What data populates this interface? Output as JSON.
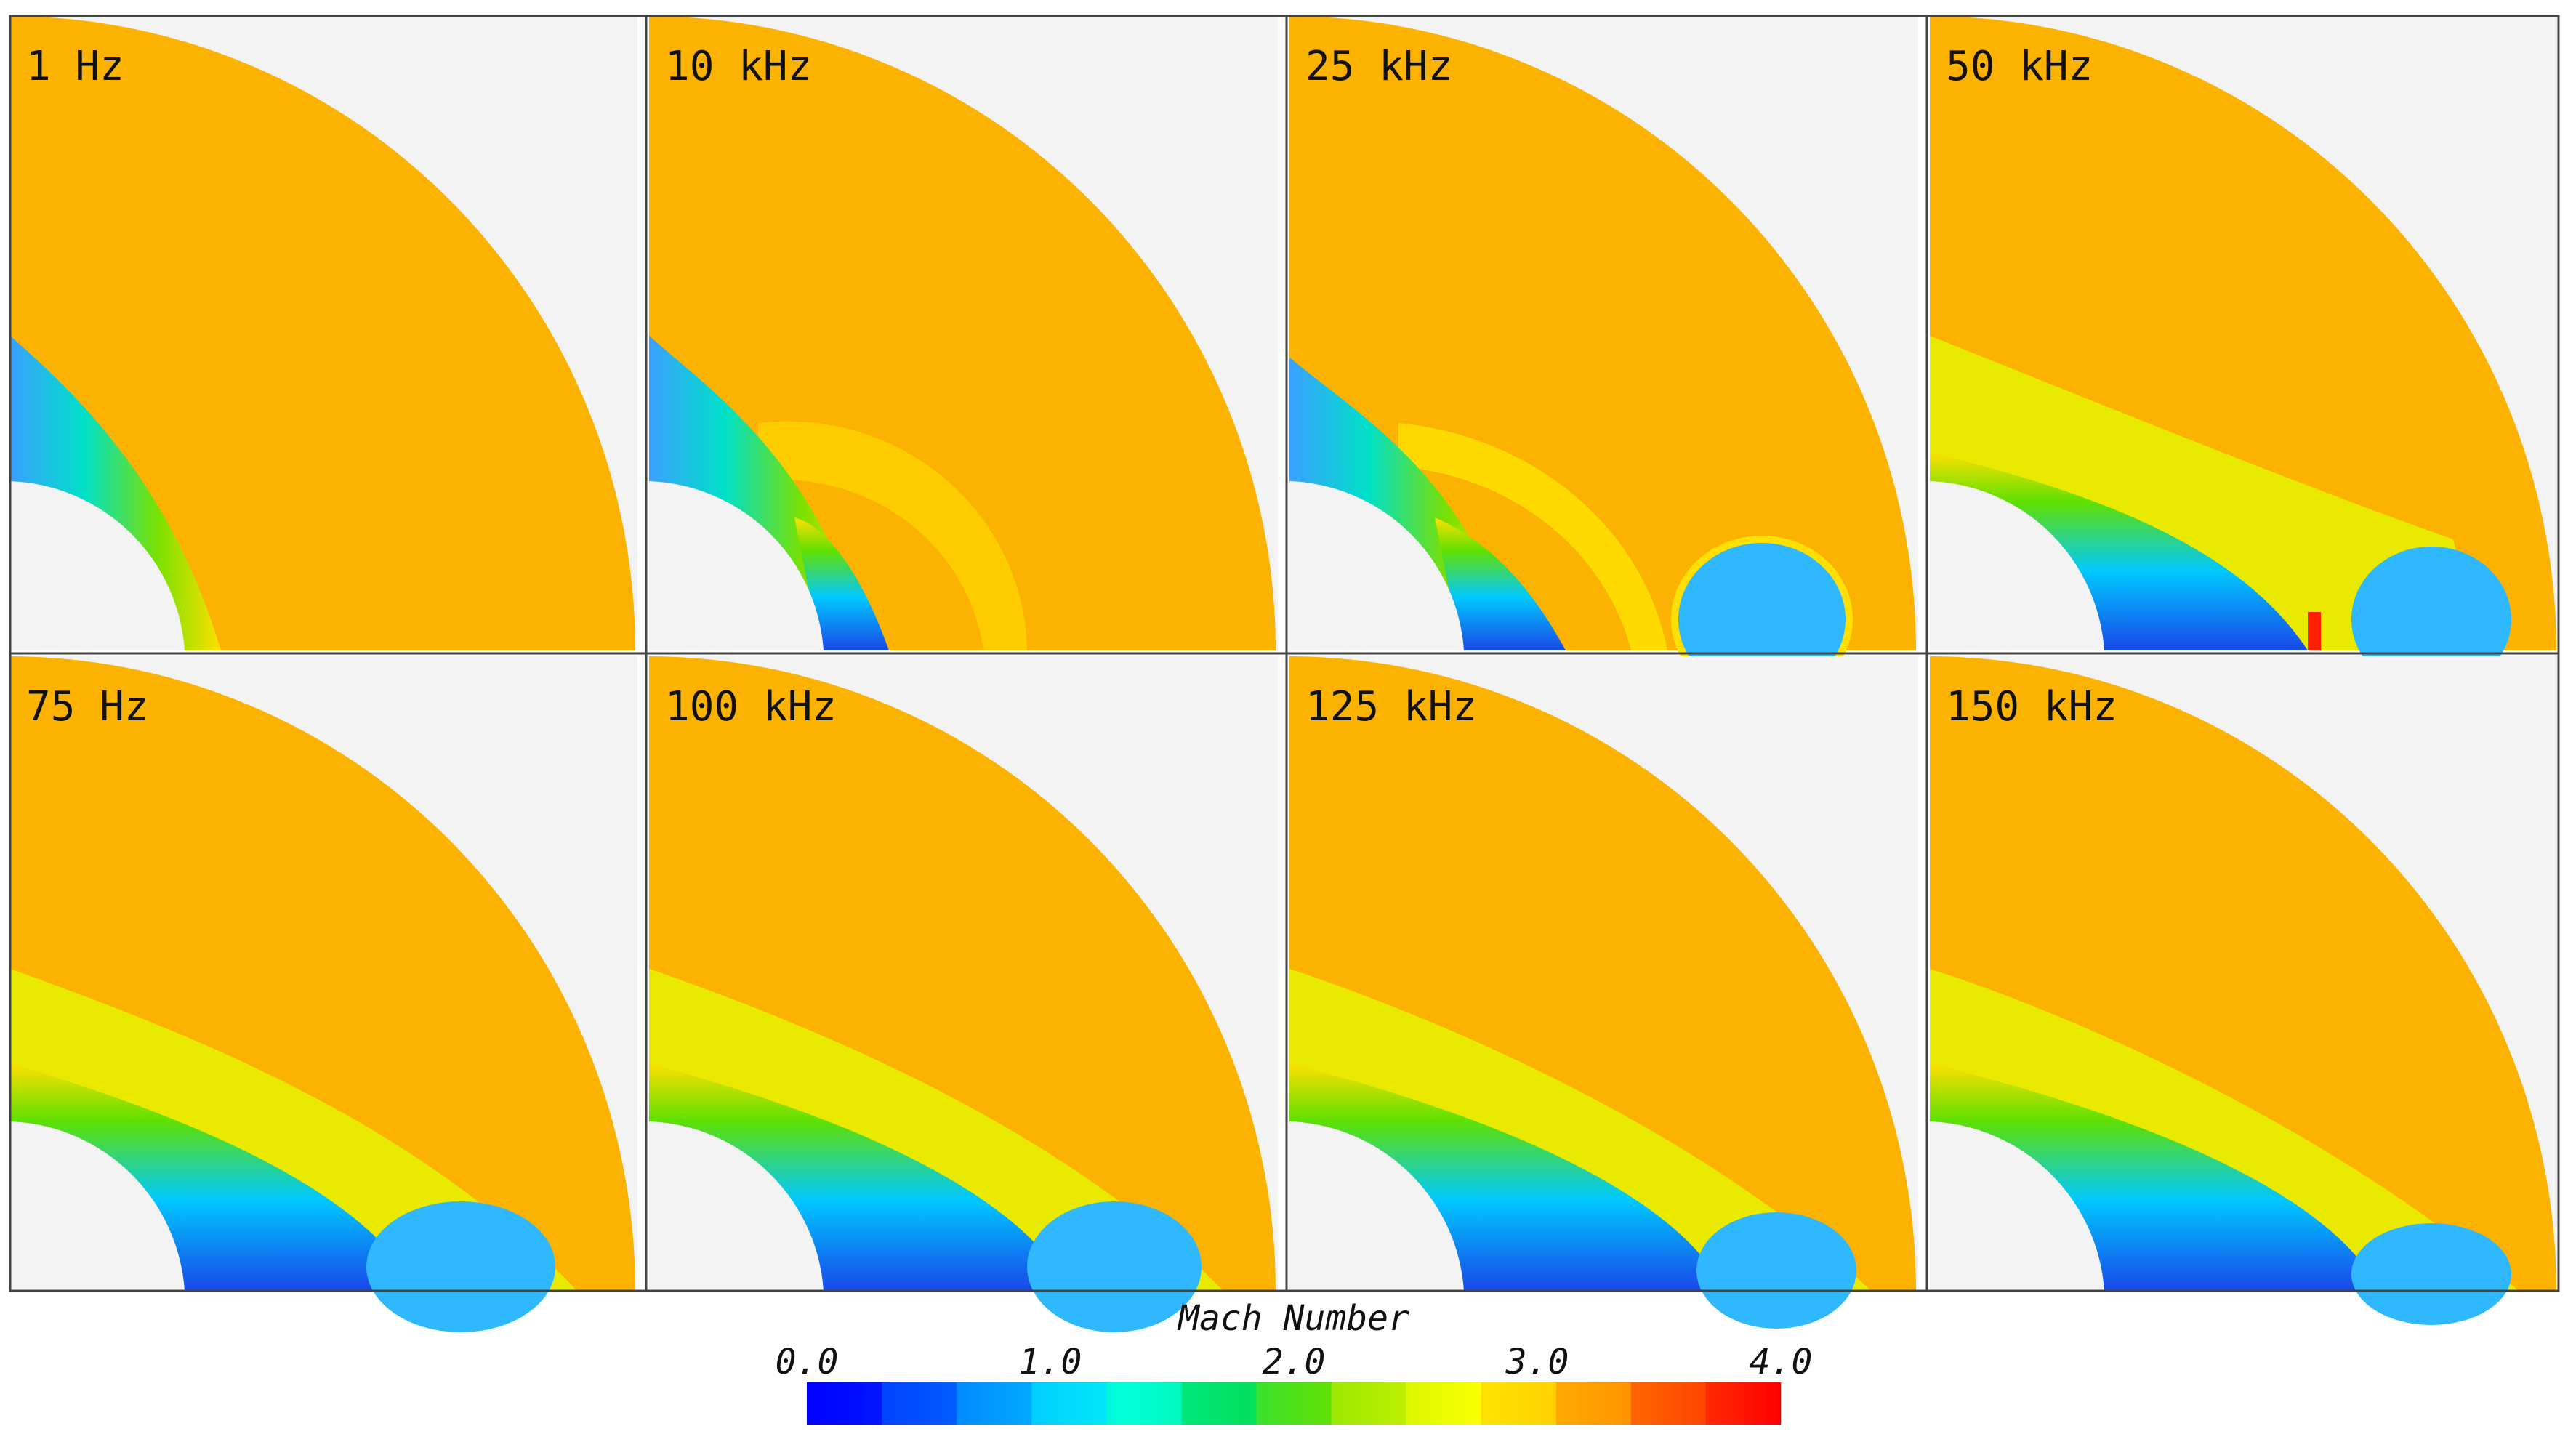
{
  "panels": [
    {
      "label": "1 Hz"
    },
    {
      "label": "10 kHz"
    },
    {
      "label": "25 kHz"
    },
    {
      "label": "50 kHz"
    },
    {
      "label": "75 Hz"
    },
    {
      "label": "100 kHz"
    },
    {
      "label": "125 kHz"
    },
    {
      "label": "150 kHz"
    }
  ],
  "colorbar": {
    "title": "Mach Number",
    "ticks": [
      "0.0",
      "1.0",
      "2.0",
      "3.0",
      "4.0"
    ],
    "range": [
      0.0,
      4.0
    ],
    "colors": [
      "#0000ff",
      "#0050ff",
      "#00a0ff",
      "#00e0ff",
      "#00ffc8",
      "#00e050",
      "#60e000",
      "#c8f000",
      "#ffff00",
      "#ffc800",
      "#ff8000",
      "#ff3000",
      "#ff0000"
    ]
  },
  "colors": {
    "freestream": "#fbb200",
    "background": "#f3f3f3",
    "frame": "#444444"
  }
}
